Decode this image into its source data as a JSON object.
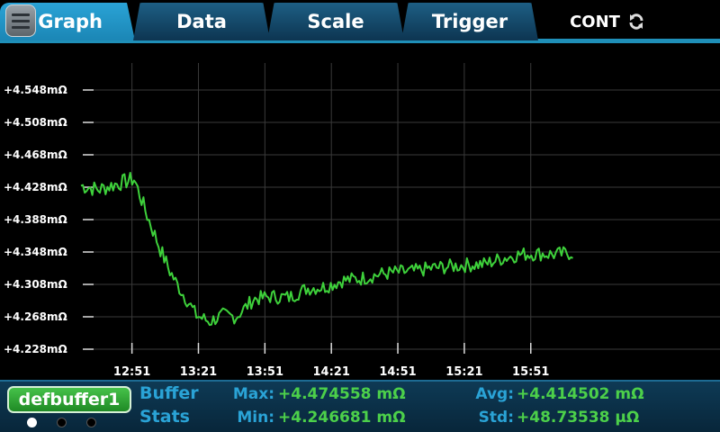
{
  "tabs": [
    {
      "label": "Graph",
      "active": true
    },
    {
      "label": "Data",
      "active": false
    },
    {
      "label": "Scale",
      "active": false
    },
    {
      "label": "Trigger",
      "active": false
    }
  ],
  "mode": {
    "label": "CONT",
    "icon": "refresh-icon"
  },
  "menu_icon": "hamburger-menu-icon",
  "colors": {
    "accent": "#1f8fb8",
    "trace": "#3ed13b",
    "label": "#2aa3d6",
    "value": "#4cd04a"
  },
  "chart_data": {
    "type": "line",
    "y_ticks": [
      "+4.548mΩ",
      "+4.508mΩ",
      "+4.468mΩ",
      "+4.428mΩ",
      "+4.388mΩ",
      "+4.348mΩ",
      "+4.308mΩ",
      "+4.268mΩ",
      "+4.228mΩ"
    ],
    "y_tick_values": [
      4.548,
      4.508,
      4.468,
      4.428,
      4.388,
      4.348,
      4.308,
      4.268,
      4.228
    ],
    "ylim": [
      4.228,
      4.548
    ],
    "x_ticks": [
      "12:51",
      "13:21",
      "13:51",
      "14:21",
      "14:51",
      "15:21",
      "15:51"
    ],
    "x_tick_values": [
      771,
      801,
      831,
      861,
      891,
      921,
      951
    ],
    "xlim": [
      748,
      1010
    ],
    "grid": true,
    "series": [
      {
        "x": [
          748,
          756,
          764,
          772,
          778,
          784,
          788,
          792,
          796,
          800,
          806,
          812,
          818,
          826,
          834,
          842,
          850,
          858,
          866,
          874,
          882,
          890,
          898,
          906,
          914,
          922,
          930,
          938,
          946,
          954,
          962,
          970
        ],
        "values": [
          4.43,
          4.425,
          4.432,
          4.438,
          4.392,
          4.35,
          4.325,
          4.305,
          4.288,
          4.27,
          4.262,
          4.27,
          4.268,
          4.29,
          4.293,
          4.292,
          4.303,
          4.305,
          4.313,
          4.315,
          4.32,
          4.323,
          4.324,
          4.328,
          4.33,
          4.332,
          4.333,
          4.34,
          4.345,
          4.346,
          4.345,
          4.347
        ]
      }
    ]
  },
  "status": {
    "buffer_name": "defbuffer1",
    "stats_title_1": "Buffer",
    "stats_title_2": "Stats",
    "max_label": "Max:",
    "max_value": "+4.474558 mΩ",
    "min_label": "Min:",
    "min_value": "+4.246681 mΩ",
    "avg_label": "Avg:",
    "avg_value": "+4.414502 mΩ",
    "std_label": "Std:",
    "std_value": "+48.73538 μΩ",
    "page_count": 3,
    "active_page": 1
  }
}
